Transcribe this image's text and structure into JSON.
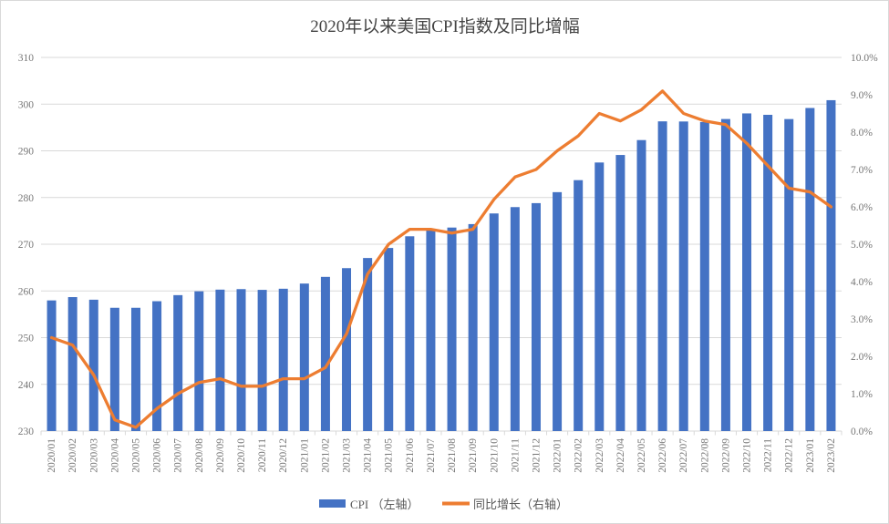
{
  "title": "2020年以来美国CPI指数及同比增幅",
  "colors": {
    "bar": "#4472C4",
    "line": "#ED7D31",
    "grid": "#d9d9d9",
    "axis_line": "#d9d9d9",
    "axis_text": "#767676",
    "title_text": "#444444",
    "legend_text": "#595959",
    "background": "#ffffff",
    "frame_border": "#d9d9d9"
  },
  "chart_data": {
    "type": "bar+line combo",
    "title": "2020年以来美国CPI指数及同比增幅",
    "grid": true,
    "legend_position": "bottom",
    "categories": [
      "2020/01",
      "2020/02",
      "2020/03",
      "2020/04",
      "2020/05",
      "2020/06",
      "2020/07",
      "2020/08",
      "2020/09",
      "2020/10",
      "2020/11",
      "2020/12",
      "2021/01",
      "2021/02",
      "2021/03",
      "2021/04",
      "2021/05",
      "2021/06",
      "2021/07",
      "2021/08",
      "2021/09",
      "2021/10",
      "2021/11",
      "2021/12",
      "2022/01",
      "2022/02",
      "2022/03",
      "2022/04",
      "2022/05",
      "2022/06",
      "2022/07",
      "2022/08",
      "2022/09",
      "2022/10",
      "2022/11",
      "2022/12",
      "2023/01",
      "2023/02"
    ],
    "series": [
      {
        "name": "CPI （左轴）",
        "type": "bar",
        "axis": "left",
        "color": "#4472C4",
        "values": [
          257.97,
          258.68,
          258.12,
          256.39,
          256.39,
          257.8,
          259.1,
          259.92,
          260.28,
          260.39,
          260.23,
          260.47,
          261.58,
          263.01,
          264.88,
          267.05,
          269.2,
          271.7,
          273.0,
          273.57,
          274.31,
          276.59,
          277.95,
          278.8,
          281.15,
          283.72,
          287.5,
          289.11,
          292.3,
          296.31,
          296.28,
          296.17,
          296.81,
          298.01,
          297.71,
          296.8,
          299.17,
          300.84
        ]
      },
      {
        "name": "同比增长（右轴）",
        "type": "line",
        "axis": "right",
        "color": "#ED7D31",
        "values_percent": [
          2.5,
          2.3,
          1.5,
          0.3,
          0.1,
          0.6,
          1.0,
          1.3,
          1.4,
          1.2,
          1.2,
          1.4,
          1.4,
          1.7,
          2.6,
          4.2,
          5.0,
          5.4,
          5.4,
          5.3,
          5.4,
          6.2,
          6.8,
          7.0,
          7.5,
          7.9,
          8.5,
          8.3,
          8.6,
          9.1,
          8.5,
          8.3,
          8.2,
          7.7,
          7.1,
          6.5,
          6.4,
          6.0
        ]
      }
    ],
    "left_axis": {
      "min": 230,
      "max": 310,
      "step": 10
    },
    "right_axis": {
      "min": 0,
      "max": 10,
      "step": 1,
      "format": "percent",
      "decimals": 1
    }
  }
}
